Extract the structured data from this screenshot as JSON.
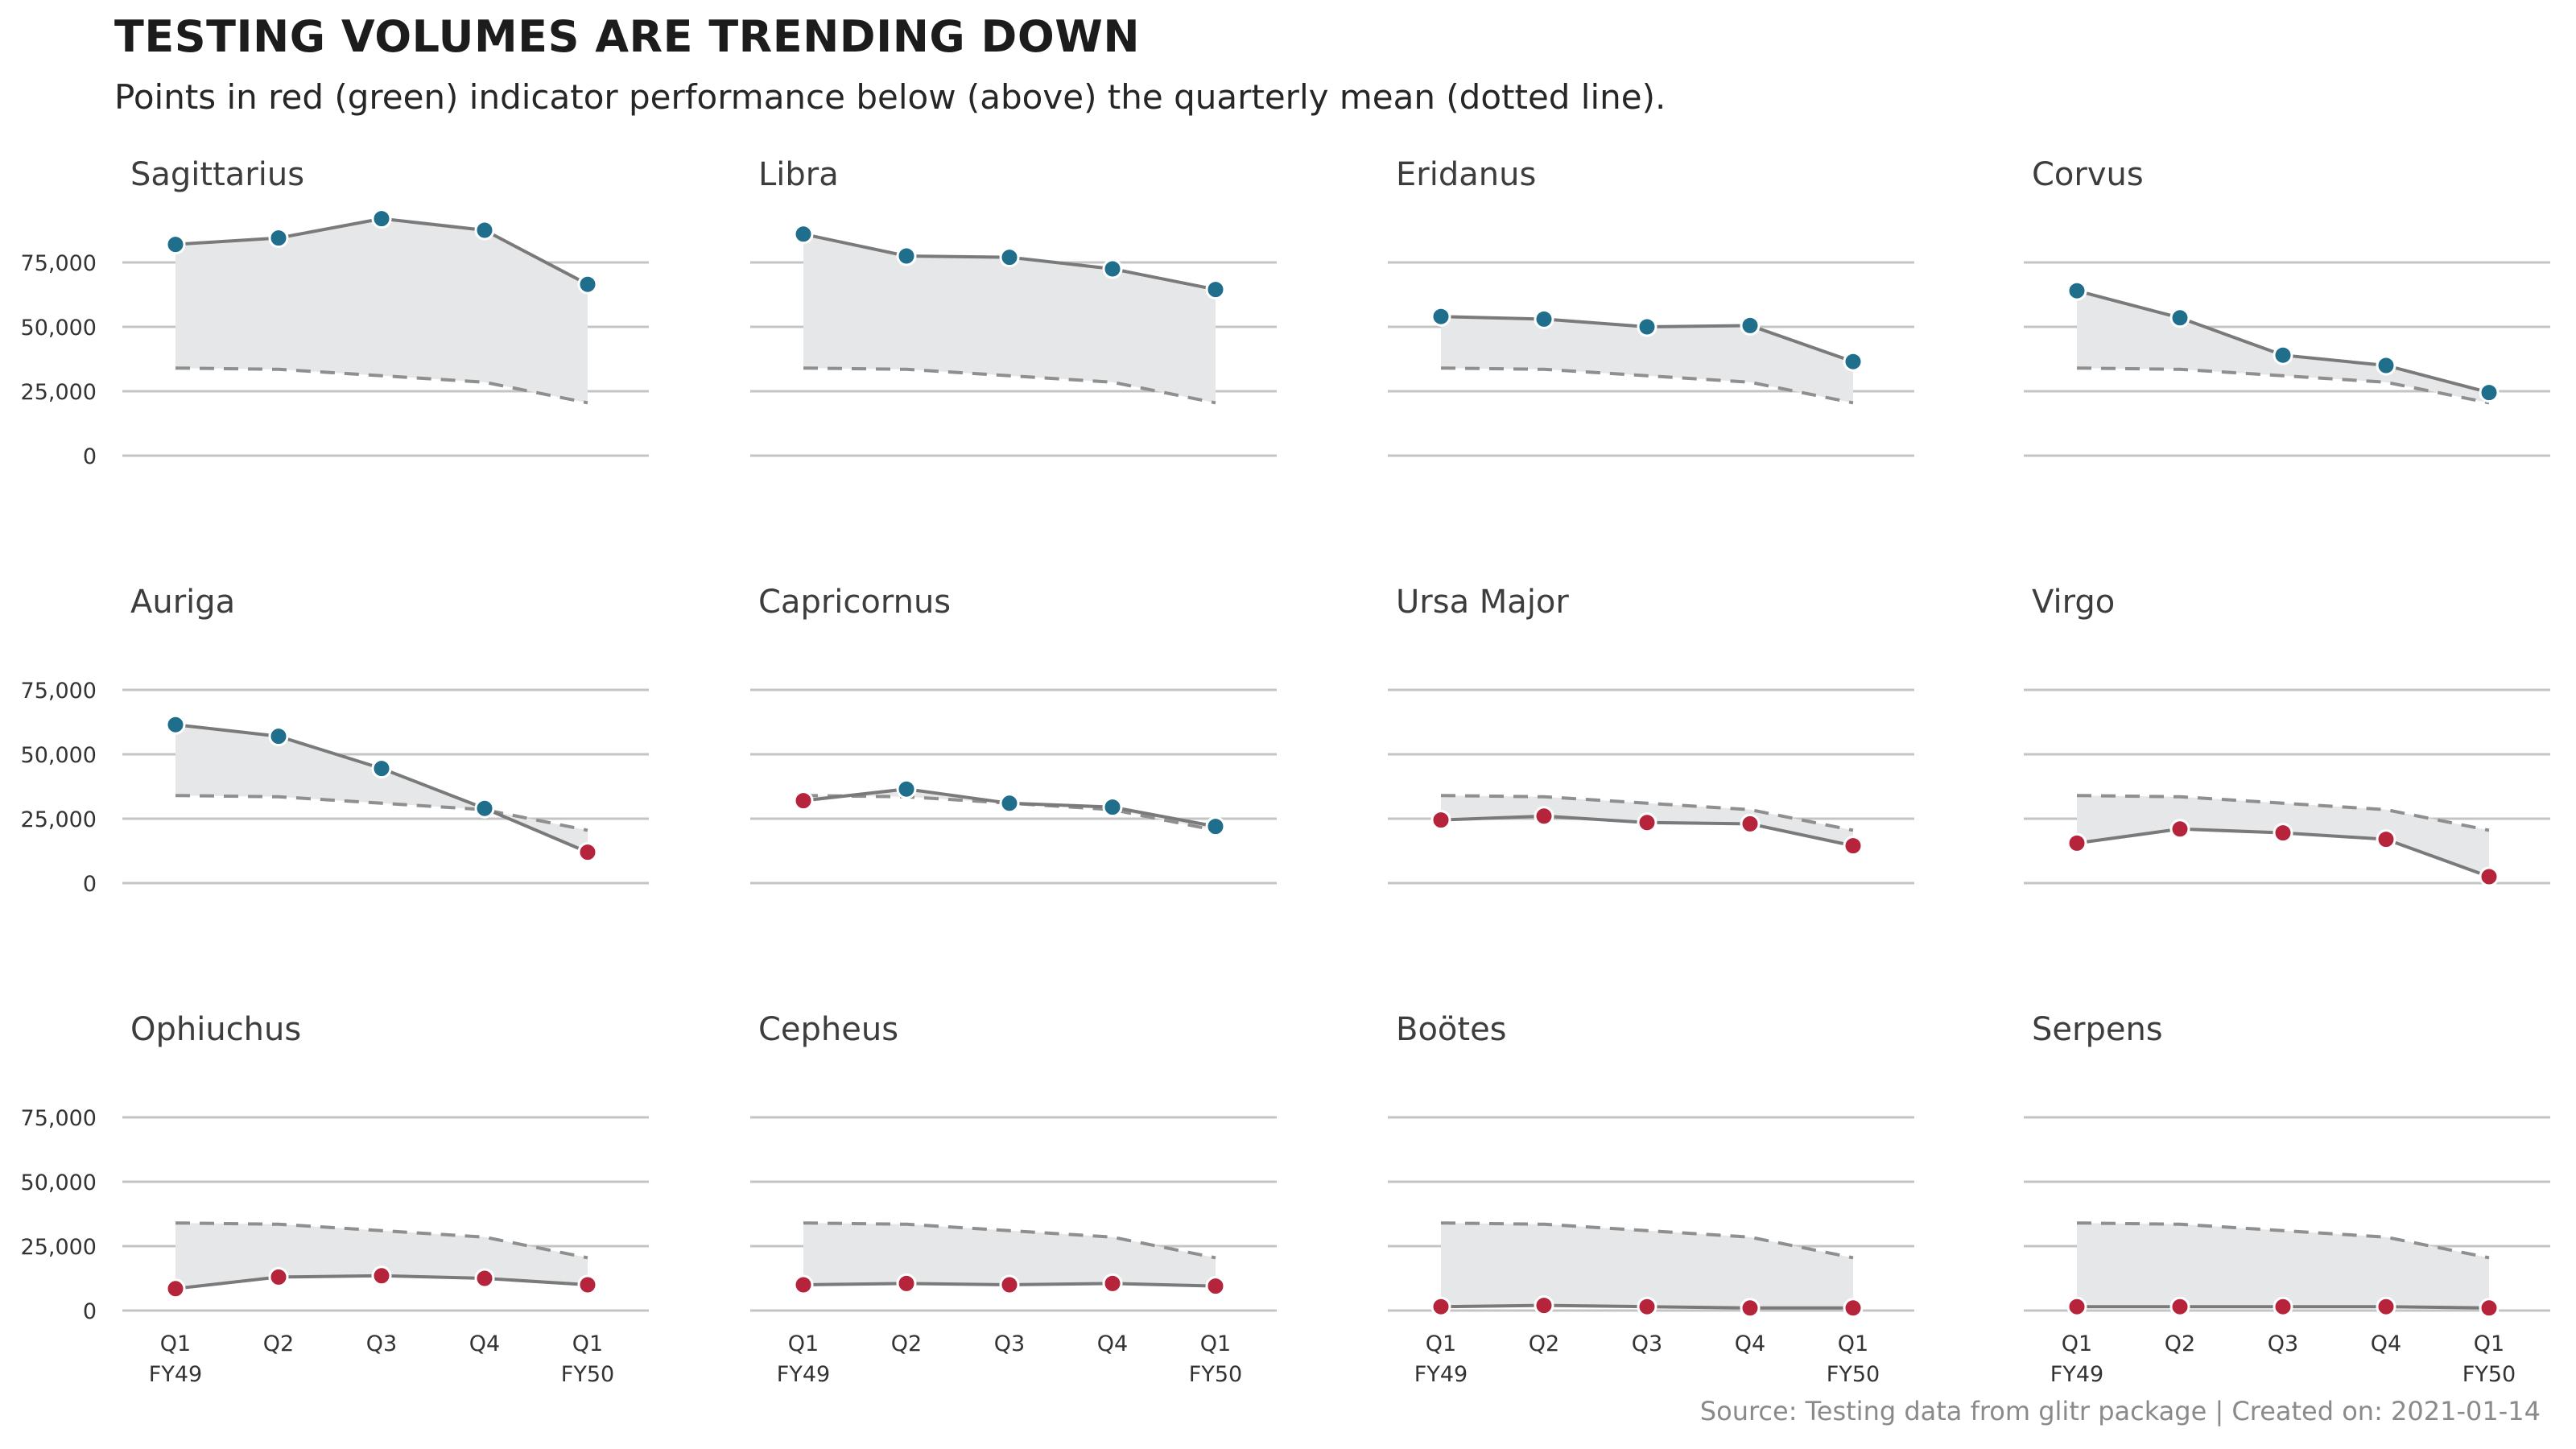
{
  "title": "TESTING VOLUMES ARE TRENDING DOWN",
  "subtitle": "Points in red (green) indicator performance below (above) the quarterly mean (dotted line).",
  "caption": "Source: Testing data from glitr package | Created on: 2021-01-14",
  "colors": {
    "above": "#1f6e8c",
    "below": "#b5243a",
    "line": "#7a7a7a",
    "mean": "#8f8f8f",
    "ribbon": "#e6e7e8",
    "grid": "#c4c4c4"
  },
  "chart_data": {
    "type": "line",
    "facets": 12,
    "layout": "3 rows x 4 columns",
    "x_labels": [
      "Q1\nFY49",
      "Q2",
      "Q3",
      "Q4",
      "Q1\nFY50"
    ],
    "y_ticks": [
      0,
      25000,
      50000,
      75000
    ],
    "y_tick_labels": [
      "0",
      "25,000",
      "50,000",
      "75,000"
    ],
    "ylim": [
      0,
      95000
    ],
    "quarterly_mean": [
      34000,
      33500,
      31000,
      28500,
      20500
    ],
    "panels": [
      {
        "name": "Sagittarius",
        "values": [
          82000,
          84500,
          92000,
          87500,
          66500
        ]
      },
      {
        "name": "Libra",
        "values": [
          86000,
          77500,
          77000,
          72500,
          64500
        ]
      },
      {
        "name": "Eridanus",
        "values": [
          54000,
          53000,
          50000,
          50500,
          36500
        ]
      },
      {
        "name": "Corvus",
        "values": [
          64000,
          53500,
          39000,
          35000,
          24500
        ]
      },
      {
        "name": "Auriga",
        "values": [
          61500,
          57000,
          44500,
          29000,
          12000
        ]
      },
      {
        "name": "Capricornus",
        "values": [
          32000,
          36500,
          31000,
          29500,
          22000
        ]
      },
      {
        "name": "Ursa Major",
        "values": [
          24500,
          26000,
          23500,
          23000,
          14500
        ]
      },
      {
        "name": "Virgo",
        "values": [
          15500,
          21000,
          19500,
          17000,
          2500
        ]
      },
      {
        "name": "Ophiuchus",
        "values": [
          8500,
          13000,
          13500,
          12500,
          10000
        ]
      },
      {
        "name": "Cepheus",
        "values": [
          10000,
          10500,
          10000,
          10500,
          9500
        ]
      },
      {
        "name": "Boötes",
        "values": [
          1500,
          2000,
          1500,
          1000,
          1000
        ]
      },
      {
        "name": "Serpens",
        "values": [
          1500,
          1500,
          1500,
          1500,
          1000
        ]
      }
    ]
  }
}
